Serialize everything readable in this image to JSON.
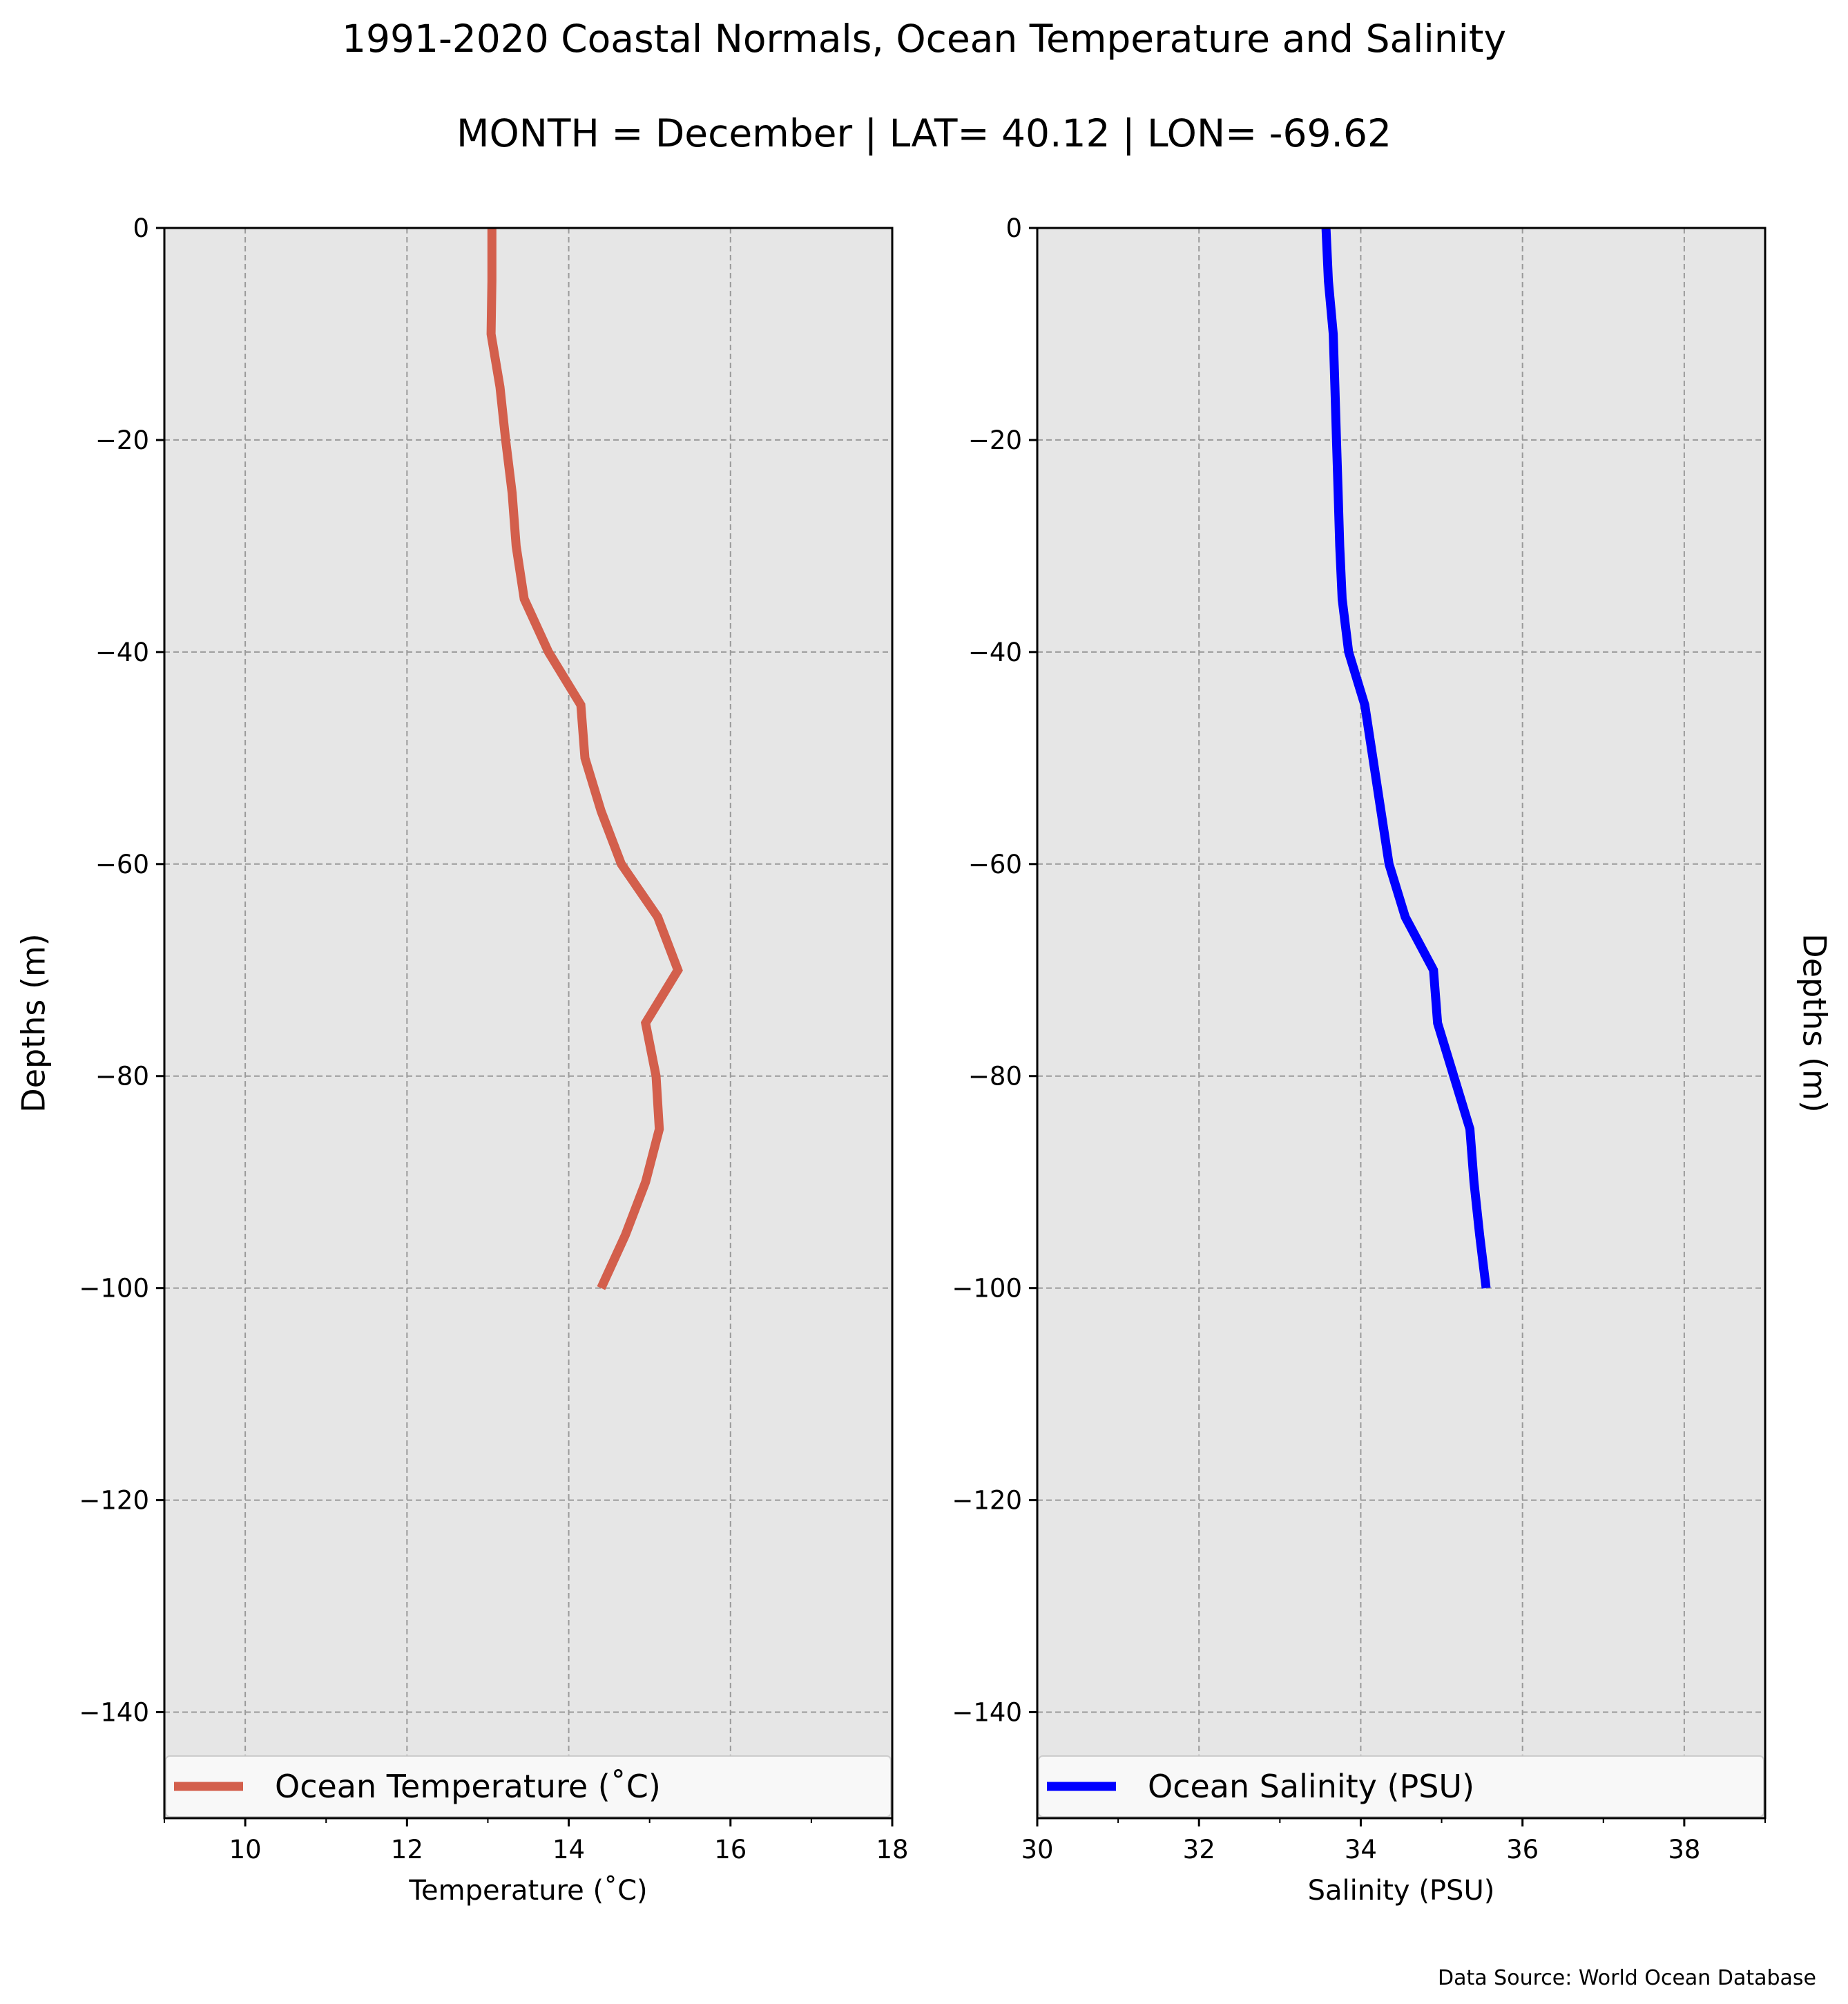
{
  "figure": {
    "title": "1991-2020 Coastal Normals, Ocean Temperature and Salinity",
    "subtitle": "MONTH = December | LAT= 40.12 | LON= -69.62",
    "source_note": "Data Source: World Ocean Database",
    "background_color": "#e6e6e6",
    "grid": true
  },
  "chart_data": [
    {
      "type": "line",
      "xlabel": "Temperature ($^\\circ$C)",
      "xlabel_display": "Temperature (˚C)",
      "ylabel": "Depths (m)",
      "xlim": [
        9,
        18
      ],
      "ylim": [
        -150,
        0
      ],
      "x_ticks": [
        10,
        12,
        14,
        16,
        18
      ],
      "y_ticks": [
        0,
        -20,
        -40,
        -60,
        -80,
        -100,
        -120,
        -140
      ],
      "legend_position": "bottom",
      "series": [
        {
          "name": "Ocean Temperature (˚C)",
          "color": "#d35f4c",
          "x": [
            13.05,
            13.05,
            13.04,
            13.15,
            13.22,
            13.3,
            13.35,
            13.45,
            13.75,
            14.15,
            14.2,
            14.4,
            14.65,
            15.1,
            15.35,
            14.95,
            15.08,
            15.12,
            14.95,
            14.7,
            14.4
          ],
          "y": [
            0,
            -5,
            -10,
            -15,
            -20,
            -25,
            -30,
            -35,
            -40,
            -45,
            -50,
            -55,
            -60,
            -65,
            -70,
            -75,
            -80,
            -85,
            -90,
            -95,
            -100
          ]
        }
      ]
    },
    {
      "type": "line",
      "xlabel": "Salinity (PSU)",
      "ylabel": "Depths (m)",
      "xlim": [
        30,
        39
      ],
      "ylim": [
        -150,
        0
      ],
      "x_ticks": [
        30,
        32,
        34,
        36,
        38
      ],
      "y_ticks": [
        0,
        -20,
        -40,
        -60,
        -80,
        -100,
        -120,
        -140
      ],
      "legend_position": "bottom",
      "series": [
        {
          "name": "Ocean Salinity (PSU)",
          "color": "#0000ff",
          "x": [
            33.57,
            33.6,
            33.66,
            33.68,
            33.7,
            33.72,
            33.74,
            33.77,
            33.85,
            34.05,
            34.15,
            34.25,
            34.35,
            34.55,
            34.9,
            34.95,
            35.15,
            35.35,
            35.4,
            35.47,
            35.55
          ],
          "y": [
            0,
            -5,
            -10,
            -15,
            -20,
            -25,
            -30,
            -35,
            -40,
            -45,
            -50,
            -55,
            -60,
            -65,
            -70,
            -75,
            -80,
            -85,
            -90,
            -95,
            -100
          ]
        }
      ]
    }
  ]
}
